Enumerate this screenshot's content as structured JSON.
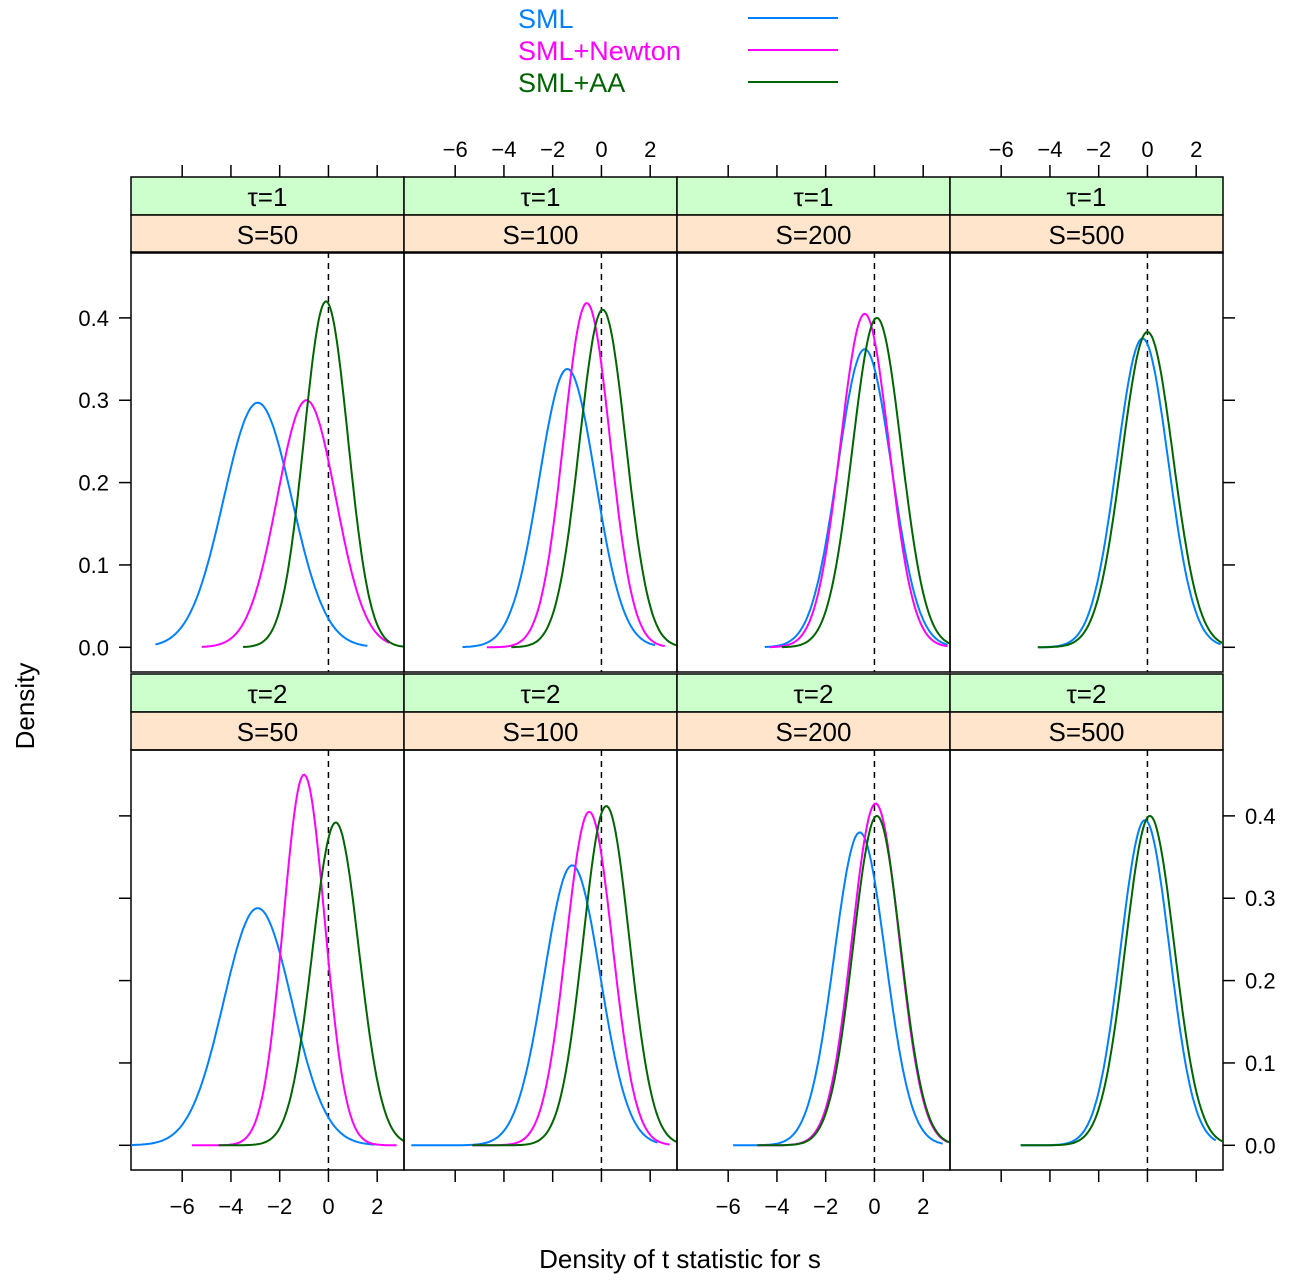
{
  "chart_data": {
    "type": "line",
    "xlabel": "Density of t statistic for s",
    "ylabel": "Density",
    "xlim": [
      -8.1,
      3.1
    ],
    "ylim": [
      -0.03,
      0.48
    ],
    "x_ticks": [
      -6,
      -4,
      -2,
      0,
      2
    ],
    "y_ticks": [
      0.0,
      0.1,
      0.2,
      0.3,
      0.4
    ],
    "x_tick_labels": [
      "−6",
      "−4",
      "−2",
      "0",
      "2"
    ],
    "y_tick_labels": [
      "0.0",
      "0.1",
      "0.2",
      "0.3",
      "0.4"
    ],
    "reference_line_x": 0,
    "grid": false,
    "legend_position": "top-center",
    "legend": [
      {
        "name": "SML",
        "color": "#0080ff"
      },
      {
        "name": "SML+Newton",
        "color": "#ff00ff"
      },
      {
        "name": "SML+AA",
        "color": "#006400"
      }
    ],
    "strip_colors": {
      "tau": "#ccffcc",
      "S": "#ffe5cc"
    },
    "panels": [
      {
        "tau_label": "τ=1",
        "s_label": "S=50",
        "series": [
          {
            "name": "SML",
            "peak_x": -2.9,
            "peak_y": 0.297,
            "sd": 1.4,
            "x_range": [
              -7.1,
              1.6
            ]
          },
          {
            "name": "SML+Newton",
            "peak_x": -0.9,
            "peak_y": 0.3,
            "sd": 1.2,
            "x_range": [
              -5.2,
              2.5
            ]
          },
          {
            "name": "SML+AA",
            "peak_x": -0.1,
            "peak_y": 0.42,
            "sd": 0.9,
            "x_range": [
              -3.5,
              3.1
            ]
          }
        ]
      },
      {
        "tau_label": "τ=1",
        "s_label": "S=100",
        "series": [
          {
            "name": "SML",
            "peak_x": -1.4,
            "peak_y": 0.338,
            "sd": 1.15,
            "x_range": [
              -5.7,
              2.2
            ]
          },
          {
            "name": "SML+Newton",
            "peak_x": -0.6,
            "peak_y": 0.418,
            "sd": 0.95,
            "x_range": [
              -4.7,
              2.6
            ]
          },
          {
            "name": "SML+AA",
            "peak_x": 0.05,
            "peak_y": 0.41,
            "sd": 0.95,
            "x_range": [
              -3.7,
              3.1
            ]
          }
        ]
      },
      {
        "tau_label": "τ=1",
        "s_label": "S=200",
        "series": [
          {
            "name": "SML",
            "peak_x": -0.4,
            "peak_y": 0.362,
            "sd": 1.1,
            "x_range": [
              -4.5,
              3.0
            ]
          },
          {
            "name": "SML+Newton",
            "peak_x": -0.4,
            "peak_y": 0.405,
            "sd": 1.0,
            "x_range": [
              -4.3,
              3.0
            ]
          },
          {
            "name": "SML+AA",
            "peak_x": 0.1,
            "peak_y": 0.4,
            "sd": 1.0,
            "x_range": [
              -3.8,
              3.1
            ]
          }
        ]
      },
      {
        "tau_label": "τ=1",
        "s_label": "S=500",
        "series": [
          {
            "name": "SML",
            "peak_x": -0.2,
            "peak_y": 0.375,
            "sd": 1.05,
            "x_range": [
              -4.5,
              3.0
            ]
          },
          {
            "name": "SML+AA",
            "peak_x": 0.0,
            "peak_y": 0.383,
            "sd": 1.05,
            "x_range": [
              -4.5,
              3.1
            ]
          }
        ]
      },
      {
        "tau_label": "τ=2",
        "s_label": "S=50",
        "series": [
          {
            "name": "SML",
            "peak_x": -2.9,
            "peak_y": 0.288,
            "sd": 1.4,
            "x_range": [
              -8.1,
              1.9
            ]
          },
          {
            "name": "SML+Newton",
            "peak_x": -1.0,
            "peak_y": 0.45,
            "sd": 0.85,
            "x_range": [
              -5.6,
              2.8
            ]
          },
          {
            "name": "SML+AA",
            "peak_x": 0.3,
            "peak_y": 0.392,
            "sd": 0.95,
            "x_range": [
              -4.5,
              3.1
            ]
          }
        ]
      },
      {
        "tau_label": "τ=2",
        "s_label": "S=100",
        "series": [
          {
            "name": "SML",
            "peak_x": -1.2,
            "peak_y": 0.34,
            "sd": 1.15,
            "x_range": [
              -7.8,
              2.3
            ]
          },
          {
            "name": "SML+Newton",
            "peak_x": -0.5,
            "peak_y": 0.405,
            "sd": 0.95,
            "x_range": [
              -5.3,
              2.8
            ]
          },
          {
            "name": "SML+AA",
            "peak_x": 0.2,
            "peak_y": 0.412,
            "sd": 0.95,
            "x_range": [
              -5.3,
              3.1
            ]
          }
        ]
      },
      {
        "tau_label": "τ=2",
        "s_label": "S=200",
        "series": [
          {
            "name": "SML",
            "peak_x": -0.6,
            "peak_y": 0.38,
            "sd": 1.05,
            "x_range": [
              -5.8,
              2.8
            ]
          },
          {
            "name": "SML+Newton",
            "peak_x": 0.05,
            "peak_y": 0.415,
            "sd": 0.97,
            "x_range": [
              -4.8,
              3.0
            ]
          },
          {
            "name": "SML+AA",
            "peak_x": 0.1,
            "peak_y": 0.4,
            "sd": 0.97,
            "x_range": [
              -4.8,
              3.1
            ]
          }
        ]
      },
      {
        "tau_label": "τ=2",
        "s_label": "S=500",
        "series": [
          {
            "name": "SML",
            "peak_x": -0.1,
            "peak_y": 0.395,
            "sd": 1.0,
            "x_range": [
              -5.2,
              2.8
            ]
          },
          {
            "name": "SML+AA",
            "peak_x": 0.1,
            "peak_y": 0.4,
            "sd": 1.0,
            "x_range": [
              -5.2,
              3.1
            ]
          }
        ]
      }
    ]
  }
}
